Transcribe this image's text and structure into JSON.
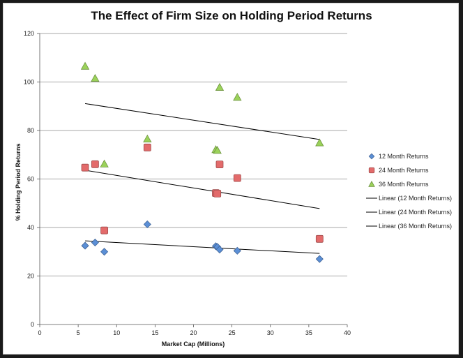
{
  "chart_data": {
    "type": "scatter",
    "title": "The Effect of Firm Size on Holding Period Returns",
    "xlabel": "Market Cap (Millions)",
    "ylabel": "% Holding Period Returns",
    "xlim": [
      0,
      40
    ],
    "ylim": [
      0,
      120
    ],
    "xticks": [
      0,
      5,
      10,
      15,
      20,
      25,
      30,
      35,
      40
    ],
    "yticks": [
      0,
      20,
      40,
      60,
      80,
      100,
      120
    ],
    "grid": "horizontal",
    "legend_position": "right",
    "series": [
      {
        "name": "12 Month Returns",
        "marker": "diamond",
        "color": "#5b8fd6",
        "points": [
          [
            5.9,
            32.5
          ],
          [
            7.2,
            33.8
          ],
          [
            8.4,
            30.0
          ],
          [
            14.0,
            41.3
          ],
          [
            22.9,
            32.3
          ],
          [
            23.1,
            32.0
          ],
          [
            23.4,
            30.9
          ],
          [
            25.7,
            30.4
          ],
          [
            36.4,
            27.0
          ]
        ]
      },
      {
        "name": "24 Month Returns",
        "marker": "square",
        "color": "#e36b6b",
        "points": [
          [
            5.9,
            64.7
          ],
          [
            7.2,
            66.1
          ],
          [
            8.4,
            38.8
          ],
          [
            14.0,
            73.0
          ],
          [
            22.9,
            54.2
          ],
          [
            23.1,
            54.0
          ],
          [
            23.4,
            66.0
          ],
          [
            25.7,
            60.4
          ],
          [
            36.4,
            35.3
          ]
        ]
      },
      {
        "name": "36 Month Returns",
        "marker": "triangle",
        "color": "#9bd25a",
        "points": [
          [
            5.9,
            106.5
          ],
          [
            7.2,
            101.5
          ],
          [
            8.4,
            66.2
          ],
          [
            14.0,
            76.5
          ],
          [
            22.9,
            72.1
          ],
          [
            23.1,
            71.8
          ],
          [
            23.4,
            97.8
          ],
          [
            25.7,
            93.7
          ],
          [
            36.4,
            74.9
          ]
        ]
      }
    ],
    "trendlines": [
      {
        "name": "Linear (12 Month Returns)",
        "color": "#000000",
        "x": [
          5.9,
          36.4
        ],
        "y": [
          34.5,
          29.3
        ]
      },
      {
        "name": "Linear (24 Month Returns)",
        "color": "#000000",
        "x": [
          5.9,
          36.4
        ],
        "y": [
          63.6,
          47.8
        ]
      },
      {
        "name": "Linear (36 Month Returns)",
        "color": "#000000",
        "x": [
          5.9,
          36.4
        ],
        "y": [
          91.1,
          76.3
        ]
      }
    ]
  }
}
